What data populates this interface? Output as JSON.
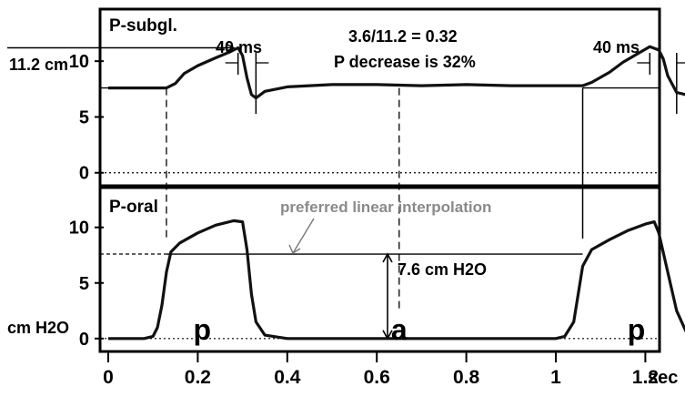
{
  "chart_data": {
    "type": "line",
    "x_unit": "sec",
    "x_ticks": [
      "0",
      "0.2",
      "0.4",
      "0.6",
      "0.8",
      "1",
      "1.2"
    ],
    "xlim": [
      0,
      1.33
    ],
    "y_unit": "cm H2O",
    "panels": [
      {
        "title": "P-subgl.",
        "ylim": [
          -1,
          14.5
        ],
        "y_ticks": [
          "0",
          "5",
          "10"
        ],
        "series": [
          {
            "values": [
              [
                0.0,
                7.6
              ],
              [
                0.05,
                7.6
              ],
              [
                0.1,
                7.6
              ],
              [
                0.13,
                7.6
              ],
              [
                0.15,
                8.0
              ],
              [
                0.17,
                8.9
              ],
              [
                0.2,
                9.6
              ],
              [
                0.24,
                10.3
              ],
              [
                0.27,
                10.8
              ],
              [
                0.29,
                11.2
              ],
              [
                0.3,
                10.5
              ],
              [
                0.31,
                8.5
              ],
              [
                0.32,
                7.0
              ],
              [
                0.33,
                6.7
              ],
              [
                0.35,
                7.3
              ],
              [
                0.4,
                7.7
              ],
              [
                0.5,
                7.9
              ],
              [
                0.6,
                7.9
              ],
              [
                0.7,
                7.8
              ],
              [
                0.8,
                7.9
              ],
              [
                0.9,
                7.8
              ],
              [
                1.0,
                7.8
              ],
              [
                1.06,
                7.8
              ],
              [
                1.08,
                8.1
              ],
              [
                1.12,
                9.0
              ],
              [
                1.15,
                9.9
              ],
              [
                1.18,
                10.6
              ],
              [
                1.21,
                11.3
              ],
              [
                1.23,
                11.0
              ],
              [
                1.24,
                10.2
              ],
              [
                1.25,
                8.7
              ],
              [
                1.27,
                7.2
              ],
              [
                1.29,
                7.0
              ],
              [
                1.31,
                7.5
              ],
              [
                1.33,
                8.0
              ]
            ]
          }
        ],
        "annotations": {
          "peak_label": "11.2 cm",
          "ratio_line1": "3.6/11.2 = 0.32",
          "ratio_line2": "P decrease is 32%",
          "interval_left": "40 ms",
          "interval_right": "40 ms",
          "reference_level": 7.6,
          "peak_value": 11.2
        }
      },
      {
        "title": "P-oral",
        "ylim": [
          -1,
          13.5
        ],
        "y_ticks": [
          "0",
          "5",
          "10"
        ],
        "series": [
          {
            "values": [
              [
                0.0,
                0.0
              ],
              [
                0.08,
                0.0
              ],
              [
                0.1,
                0.2
              ],
              [
                0.11,
                1.0
              ],
              [
                0.12,
                3.0
              ],
              [
                0.13,
                6.0
              ],
              [
                0.14,
                7.8
              ],
              [
                0.16,
                8.6
              ],
              [
                0.2,
                9.5
              ],
              [
                0.24,
                10.2
              ],
              [
                0.28,
                10.6
              ],
              [
                0.3,
                10.5
              ],
              [
                0.31,
                8.0
              ],
              [
                0.32,
                4.0
              ],
              [
                0.33,
                1.5
              ],
              [
                0.35,
                0.3
              ],
              [
                0.4,
                0.0
              ],
              [
                0.5,
                0.0
              ],
              [
                0.6,
                0.0
              ],
              [
                0.7,
                0.0
              ],
              [
                0.8,
                0.0
              ],
              [
                0.9,
                0.0
              ],
              [
                1.0,
                0.0
              ],
              [
                1.02,
                0.2
              ],
              [
                1.04,
                1.5
              ],
              [
                1.05,
                4.0
              ],
              [
                1.06,
                6.5
              ],
              [
                1.08,
                8.0
              ],
              [
                1.12,
                8.9
              ],
              [
                1.16,
                9.7
              ],
              [
                1.2,
                10.3
              ],
              [
                1.22,
                10.5
              ],
              [
                1.23,
                9.5
              ],
              [
                1.25,
                6.0
              ],
              [
                1.27,
                2.5
              ],
              [
                1.29,
                0.7
              ],
              [
                1.31,
                0.1
              ],
              [
                1.33,
                0.0
              ]
            ]
          }
        ],
        "annotations": {
          "interpolation_label": "preferred linear interpolation",
          "measure_label": "7.6 cm H2O",
          "interpolation_level": 7.6
        }
      }
    ],
    "segment_labels": [
      {
        "label": "p",
        "x": 0.21
      },
      {
        "label": "a",
        "x": 0.65
      },
      {
        "label": "p",
        "x": 1.18
      }
    ],
    "marker_times": [
      0.13,
      0.65,
      1.06
    ]
  }
}
